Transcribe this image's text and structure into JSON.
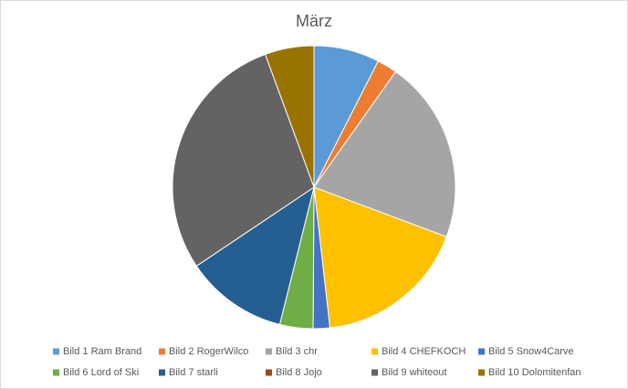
{
  "chart_data": {
    "type": "pie",
    "title": "März",
    "categories": [
      "Bild 1 Ram Brand",
      "Bild 2 RogerWilco",
      "Bild 3 chr",
      "Bild 4 CHEFKOCH",
      "Bild 5 Snow4Carve",
      "Bild 6 Lord of Ski",
      "Bild 7 starli",
      "Bild 8 Jojo",
      "Bild 9 whiteout",
      "Bild 10 Dolomitenfan"
    ],
    "values": [
      7.5,
      2.3,
      20.9,
      17.5,
      1.9,
      3.8,
      11.7,
      0,
      28.8,
      5.6
    ],
    "colors": [
      "#5b9bd5",
      "#ed7d31",
      "#a5a5a5",
      "#ffc000",
      "#4472c4",
      "#70ad47",
      "#255e91",
      "#9e480e",
      "#636363",
      "#997300"
    ],
    "legend": "bottom"
  }
}
